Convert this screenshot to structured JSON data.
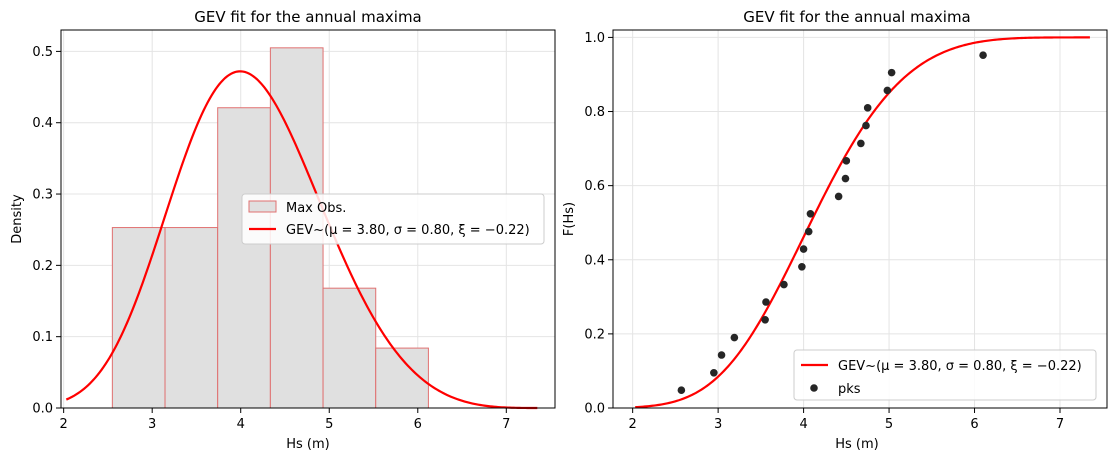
{
  "chart_data": [
    {
      "type": "bar",
      "title": "GEV fit for the annual maxima",
      "xlabel": "Hs (m)",
      "ylabel": "Density",
      "xlim": [
        1.97,
        7.55
      ],
      "ylim": [
        0,
        0.53
      ],
      "xticks": [
        "2",
        "3",
        "4",
        "5",
        "6",
        "7"
      ],
      "yticks": [
        "0.0",
        "0.1",
        "0.2",
        "0.3",
        "0.4",
        "0.5"
      ],
      "grid": true,
      "legend_position": "center-right",
      "histogram": {
        "name": "Max Obs.",
        "bin_edges": [
          2.55,
          3.145,
          3.74,
          4.335,
          4.93,
          5.525,
          6.12
        ],
        "densities": [
          0.253,
          0.253,
          0.421,
          0.505,
          0.168,
          0.084
        ],
        "color": "#e0e0e0",
        "edge_color": "#e07070"
      },
      "curve": {
        "name": "GEV~(μ = 3.80, σ = 0.80, ξ = −0.22)",
        "mu": 3.8,
        "sigma": 0.8,
        "xi": -0.22,
        "x_range": [
          2.03,
          7.35
        ],
        "color": "#ff0000"
      }
    },
    {
      "type": "line",
      "title": "GEV fit for the annual maxima",
      "xlabel": "Hs (m)",
      "ylabel": "F(Hs)",
      "xlim": [
        1.77,
        7.55
      ],
      "ylim": [
        0,
        1.02
      ],
      "xticks": [
        "2",
        "3",
        "4",
        "5",
        "6",
        "7"
      ],
      "yticks": [
        "0.0",
        "0.2",
        "0.4",
        "0.6",
        "0.8",
        "1.0"
      ],
      "grid": true,
      "legend_position": "bottom-right",
      "curve": {
        "name": "GEV~(μ = 3.80, σ = 0.80, ξ = −0.22)",
        "mu": 3.8,
        "sigma": 0.8,
        "xi": -0.22,
        "x_range": [
          2.03,
          7.35
        ],
        "color": "#ff0000"
      },
      "scatter": {
        "name": "pks",
        "color": "#262626",
        "x": [
          2.57,
          2.95,
          3.04,
          3.19,
          3.55,
          3.56,
          3.77,
          3.98,
          4.0,
          4.06,
          4.08,
          4.41,
          4.49,
          4.5,
          4.67,
          4.73,
          4.75,
          4.98,
          5.03,
          6.1
        ],
        "y": [
          0.048,
          0.095,
          0.143,
          0.19,
          0.238,
          0.286,
          0.333,
          0.381,
          0.429,
          0.476,
          0.524,
          0.571,
          0.619,
          0.667,
          0.714,
          0.762,
          0.81,
          0.857,
          0.905,
          0.952
        ]
      }
    }
  ]
}
